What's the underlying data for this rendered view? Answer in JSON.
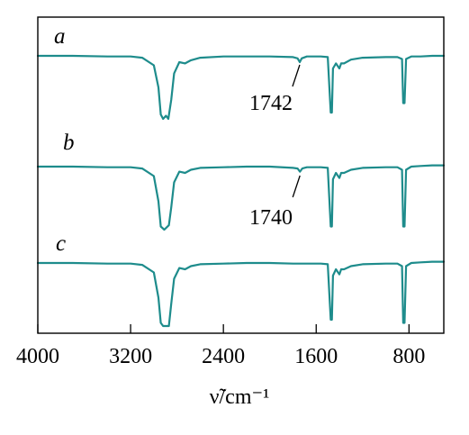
{
  "chart_data": {
    "type": "line",
    "xlabel": "ν̃/cm⁻¹",
    "xlim": [
      4000,
      500
    ],
    "x_reversed": true,
    "xticks": [
      4000,
      3200,
      2400,
      1600,
      800
    ],
    "yaxis_shown": false,
    "grid": false,
    "series": [
      {
        "name": "a",
        "annotation": {
          "text": "1742",
          "x": 1742
        },
        "points": [
          [
            4000,
            0.0
          ],
          [
            3700,
            0.0
          ],
          [
            3400,
            -0.01
          ],
          [
            3200,
            -0.01
          ],
          [
            3100,
            -0.03
          ],
          [
            3000,
            -0.15
          ],
          [
            2960,
            -0.5
          ],
          [
            2940,
            -0.93
          ],
          [
            2920,
            -1.0
          ],
          [
            2895,
            -0.95
          ],
          [
            2875,
            -1.0
          ],
          [
            2850,
            -0.7
          ],
          [
            2825,
            -0.28
          ],
          [
            2780,
            -0.1
          ],
          [
            2730,
            -0.12
          ],
          [
            2680,
            -0.07
          ],
          [
            2600,
            -0.03
          ],
          [
            2400,
            -0.01
          ],
          [
            2200,
            -0.01
          ],
          [
            2000,
            -0.01
          ],
          [
            1800,
            -0.02
          ],
          [
            1760,
            -0.04
          ],
          [
            1742,
            -0.1
          ],
          [
            1725,
            -0.04
          ],
          [
            1680,
            -0.01
          ],
          [
            1560,
            -0.01
          ],
          [
            1500,
            -0.02
          ],
          [
            1475,
            -0.9
          ],
          [
            1465,
            -0.9
          ],
          [
            1455,
            -0.2
          ],
          [
            1430,
            -0.12
          ],
          [
            1400,
            -0.2
          ],
          [
            1385,
            -0.12
          ],
          [
            1360,
            -0.12
          ],
          [
            1300,
            -0.06
          ],
          [
            1200,
            -0.03
          ],
          [
            1000,
            -0.02
          ],
          [
            900,
            -0.02
          ],
          [
            860,
            -0.05
          ],
          [
            850,
            -0.75
          ],
          [
            838,
            -0.75
          ],
          [
            825,
            -0.05
          ],
          [
            780,
            -0.01
          ],
          [
            700,
            -0.01
          ],
          [
            600,
            0.0
          ],
          [
            500,
            0.0
          ]
        ]
      },
      {
        "name": "b",
        "annotation": {
          "text": "1740",
          "x": 1740
        },
        "points": [
          [
            4000,
            0.0
          ],
          [
            3700,
            0.0
          ],
          [
            3400,
            -0.01
          ],
          [
            3200,
            -0.01
          ],
          [
            3100,
            -0.03
          ],
          [
            3000,
            -0.15
          ],
          [
            2960,
            -0.55
          ],
          [
            2940,
            -0.95
          ],
          [
            2910,
            -1.0
          ],
          [
            2870,
            -0.93
          ],
          [
            2850,
            -0.65
          ],
          [
            2825,
            -0.25
          ],
          [
            2780,
            -0.08
          ],
          [
            2730,
            -0.1
          ],
          [
            2680,
            -0.05
          ],
          [
            2600,
            -0.02
          ],
          [
            2400,
            -0.01
          ],
          [
            2200,
            0.0
          ],
          [
            2000,
            0.0
          ],
          [
            1800,
            -0.02
          ],
          [
            1760,
            -0.03
          ],
          [
            1740,
            -0.08
          ],
          [
            1720,
            -0.03
          ],
          [
            1680,
            -0.01
          ],
          [
            1560,
            -0.01
          ],
          [
            1500,
            -0.02
          ],
          [
            1475,
            -0.95
          ],
          [
            1465,
            -0.95
          ],
          [
            1455,
            -0.2
          ],
          [
            1430,
            -0.1
          ],
          [
            1400,
            -0.18
          ],
          [
            1385,
            -0.1
          ],
          [
            1360,
            -0.1
          ],
          [
            1300,
            -0.05
          ],
          [
            1200,
            -0.02
          ],
          [
            1000,
            -0.01
          ],
          [
            900,
            -0.01
          ],
          [
            860,
            -0.05
          ],
          [
            850,
            -0.95
          ],
          [
            838,
            -0.95
          ],
          [
            825,
            -0.05
          ],
          [
            780,
            0.0
          ],
          [
            700,
            0.01
          ],
          [
            600,
            0.02
          ],
          [
            500,
            0.02
          ]
        ]
      },
      {
        "name": "c",
        "points": [
          [
            4000,
            0.0
          ],
          [
            3700,
            0.0
          ],
          [
            3400,
            -0.01
          ],
          [
            3200,
            -0.01
          ],
          [
            3100,
            -0.03
          ],
          [
            3000,
            -0.15
          ],
          [
            2960,
            -0.55
          ],
          [
            2940,
            -0.95
          ],
          [
            2920,
            -1.0
          ],
          [
            2870,
            -1.0
          ],
          [
            2850,
            -0.65
          ],
          [
            2825,
            -0.25
          ],
          [
            2780,
            -0.08
          ],
          [
            2730,
            -0.1
          ],
          [
            2680,
            -0.05
          ],
          [
            2600,
            -0.02
          ],
          [
            2400,
            -0.01
          ],
          [
            2200,
            0.0
          ],
          [
            2000,
            0.0
          ],
          [
            1800,
            -0.01
          ],
          [
            1600,
            -0.01
          ],
          [
            1560,
            -0.01
          ],
          [
            1500,
            -0.02
          ],
          [
            1475,
            -0.9
          ],
          [
            1465,
            -0.9
          ],
          [
            1455,
            -0.2
          ],
          [
            1430,
            -0.1
          ],
          [
            1400,
            -0.18
          ],
          [
            1385,
            -0.1
          ],
          [
            1360,
            -0.1
          ],
          [
            1300,
            -0.05
          ],
          [
            1200,
            -0.02
          ],
          [
            1000,
            -0.01
          ],
          [
            900,
            -0.01
          ],
          [
            860,
            -0.05
          ],
          [
            850,
            -0.95
          ],
          [
            838,
            -0.95
          ],
          [
            825,
            -0.05
          ],
          [
            780,
            0.0
          ],
          [
            700,
            0.01
          ],
          [
            600,
            0.02
          ],
          [
            500,
            0.02
          ]
        ]
      }
    ]
  }
}
